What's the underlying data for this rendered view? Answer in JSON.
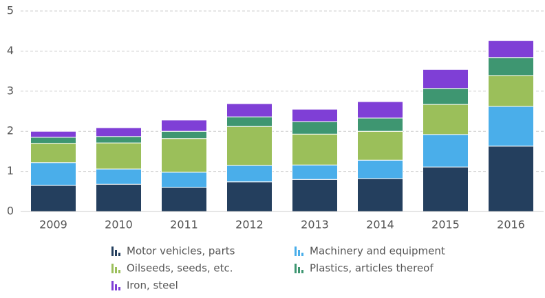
{
  "chart_data": {
    "type": "stacked-bar",
    "categories": [
      "2009",
      "2010",
      "2011",
      "2012",
      "2013",
      "2014",
      "2015",
      "2016"
    ],
    "series": [
      {
        "name": "Motor vehicles, parts",
        "color": "#243f5e",
        "values": [
          0.65,
          0.68,
          0.6,
          0.74,
          0.8,
          0.82,
          1.11,
          1.63
        ]
      },
      {
        "name": "Machinery and equipment",
        "color": "#4aaeea",
        "values": [
          0.57,
          0.38,
          0.38,
          0.41,
          0.36,
          0.46,
          0.81,
          0.99
        ]
      },
      {
        "name": "Oilseeds, seeds, etc.",
        "color": "#9bbf5a",
        "values": [
          0.48,
          0.65,
          0.84,
          0.97,
          0.77,
          0.72,
          0.75,
          0.77
        ]
      },
      {
        "name": "Plastics, articles thereof",
        "color": "#3e9671",
        "values": [
          0.15,
          0.16,
          0.18,
          0.24,
          0.31,
          0.33,
          0.4,
          0.45
        ]
      },
      {
        "name": "Iron, steel",
        "color": "#7f3fd6",
        "values": [
          0.15,
          0.22,
          0.28,
          0.33,
          0.31,
          0.41,
          0.47,
          0.42
        ]
      }
    ],
    "ylim": [
      0,
      5
    ],
    "yticks": [
      0,
      1,
      2,
      3,
      4,
      5
    ],
    "grid": true
  }
}
